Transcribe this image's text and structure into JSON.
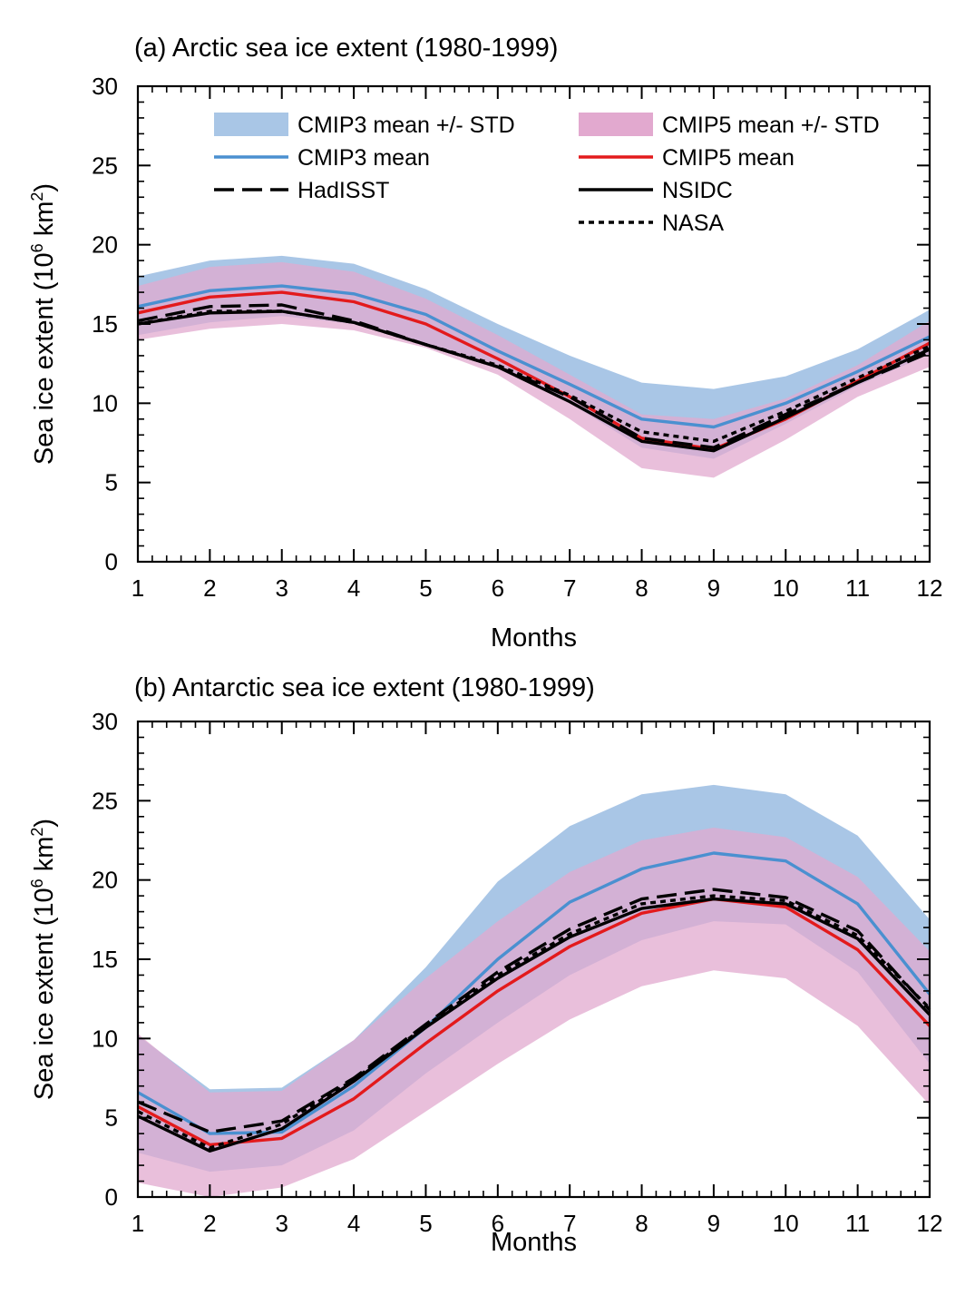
{
  "chart_data": [
    {
      "type": "line",
      "title": "(a) Arctic sea ice extent (1980-1999)",
      "xlabel": "Months",
      "ylabel_main": "Sea ice extent (10",
      "ylabel_sup1": "6",
      "ylabel_mid": " km",
      "ylabel_sup2": "2",
      "ylabel_end": ")",
      "xlim": [
        1,
        12
      ],
      "ylim": [
        0,
        30
      ],
      "x": [
        1,
        2,
        3,
        4,
        5,
        6,
        7,
        8,
        9,
        10,
        11,
        12
      ],
      "xticks": [
        "1",
        "2",
        "3",
        "4",
        "5",
        "6",
        "7",
        "8",
        "9",
        "10",
        "11",
        "12"
      ],
      "yticks": [
        "0",
        "5",
        "10",
        "15",
        "20",
        "25",
        "30"
      ],
      "bands": [
        {
          "name": "CMIP3 mean +/- STD",
          "color": "#a9c6e6",
          "upper": [
            18.0,
            19.0,
            19.3,
            18.8,
            17.2,
            15.0,
            13.0,
            11.3,
            10.9,
            11.7,
            13.4,
            15.9
          ],
          "lower": [
            14.3,
            15.1,
            15.5,
            15.0,
            13.7,
            12.2,
            10.0,
            7.2,
            6.5,
            8.7,
            11.1,
            13.1
          ]
        },
        {
          "name": "CMIP5 mean +/- STD",
          "color": "#e2a9cf",
          "upper": [
            17.4,
            18.6,
            18.9,
            18.3,
            16.6,
            14.3,
            11.8,
            9.3,
            9.0,
            10.3,
            12.4,
            15.2
          ],
          "lower": [
            14.0,
            14.7,
            15.0,
            14.6,
            13.5,
            11.8,
            9.0,
            5.9,
            5.3,
            7.7,
            10.4,
            12.3
          ]
        }
      ],
      "series": [
        {
          "name": "CMIP3 mean",
          "color": "#4a90d0",
          "style": "solid",
          "values": [
            16.1,
            17.1,
            17.4,
            16.9,
            15.6,
            13.3,
            11.2,
            9.0,
            8.5,
            10.0,
            12.0,
            14.2
          ]
        },
        {
          "name": "CMIP5 mean",
          "color": "#e31a1c",
          "style": "solid",
          "values": [
            15.7,
            16.7,
            17.0,
            16.4,
            15.0,
            12.8,
            10.4,
            7.8,
            7.1,
            9.0,
            11.4,
            13.8
          ]
        },
        {
          "name": "HadISST",
          "color": "#000000",
          "style": "longdash",
          "values": [
            15.2,
            16.1,
            16.2,
            15.2,
            13.7,
            12.3,
            10.4,
            7.8,
            7.2,
            9.3,
            11.3,
            13.2
          ]
        },
        {
          "name": "NSIDC",
          "color": "#000000",
          "style": "solid",
          "values": [
            15.0,
            15.7,
            15.8,
            15.1,
            13.7,
            12.3,
            10.1,
            7.6,
            7.0,
            9.1,
            11.3,
            13.4
          ]
        },
        {
          "name": "NASA",
          "color": "#000000",
          "style": "dotted",
          "values": [
            15.0,
            15.8,
            15.8,
            15.1,
            13.7,
            12.4,
            10.5,
            8.2,
            7.6,
            9.5,
            11.6,
            13.6
          ]
        }
      ],
      "legend": {
        "col1": [
          {
            "label": "CMIP3 mean +/- STD",
            "kind": "band",
            "color": "#a9c6e6"
          },
          {
            "label": "CMIP3 mean",
            "kind": "solid",
            "color": "#4a90d0"
          },
          {
            "label": "HadISST",
            "kind": "longdash",
            "color": "#000000"
          }
        ],
        "col2": [
          {
            "label": "CMIP5 mean +/- STD",
            "kind": "band",
            "color": "#e2a9cf"
          },
          {
            "label": "CMIP5 mean",
            "kind": "solid",
            "color": "#e31a1c"
          },
          {
            "label": "NSIDC",
            "kind": "solid",
            "color": "#000000"
          },
          {
            "label": "NASA",
            "kind": "dotted",
            "color": "#000000"
          }
        ]
      }
    },
    {
      "type": "line",
      "title": "(b) Antarctic sea ice extent (1980-1999)",
      "xlabel": "Months",
      "ylabel_main": "Sea ice extent (10",
      "ylabel_sup1": "6",
      "ylabel_mid": " km",
      "ylabel_sup2": "2",
      "ylabel_end": ")",
      "xlim": [
        1,
        12
      ],
      "ylim": [
        0,
        30
      ],
      "x": [
        1,
        2,
        3,
        4,
        5,
        6,
        7,
        8,
        9,
        10,
        11,
        12
      ],
      "xticks": [
        "1",
        "2",
        "3",
        "4",
        "5",
        "6",
        "7",
        "8",
        "9",
        "10",
        "11",
        "12"
      ],
      "yticks": [
        "0",
        "5",
        "10",
        "15",
        "20",
        "25",
        "30"
      ],
      "bands": [
        {
          "name": "CMIP3 mean +/- STD",
          "color": "#a9c6e6",
          "upper": [
            10.2,
            6.8,
            6.9,
            9.9,
            14.5,
            19.9,
            23.4,
            25.4,
            26.0,
            25.4,
            22.8,
            17.5
          ],
          "lower": [
            2.8,
            1.6,
            2.0,
            4.2,
            7.8,
            11.0,
            14.0,
            16.2,
            17.4,
            17.2,
            14.2,
            8.4
          ]
        },
        {
          "name": "CMIP5 mean +/- STD",
          "color": "#e2a9cf",
          "upper": [
            10.3,
            6.6,
            6.7,
            9.9,
            13.8,
            17.4,
            20.5,
            22.5,
            23.3,
            22.7,
            20.2,
            15.5
          ],
          "lower": [
            0.9,
            0.0,
            0.6,
            2.4,
            5.4,
            8.4,
            11.2,
            13.3,
            14.3,
            13.8,
            10.8,
            5.8
          ]
        },
        {
          "name": "CMIP3 mean +/- STD",
          "color": "#a9c6e6",
          "upper": [
            2.8,
            1.6,
            2.0,
            4.2,
            7.8,
            11.0,
            14.0,
            16.2,
            17.4,
            17.2,
            14.2,
            8.4
          ],
          "lower": [
            2.8,
            1.6,
            2.0,
            4.2,
            7.8,
            11.0,
            14.0,
            16.2,
            17.4,
            17.2,
            14.2,
            8.4
          ]
        }
      ],
      "series": [
        {
          "name": "CMIP3 mean",
          "color": "#4a90d0",
          "style": "solid",
          "values": [
            6.6,
            4.0,
            4.1,
            7.0,
            10.7,
            15.0,
            18.6,
            20.7,
            21.7,
            21.2,
            18.5,
            12.8
          ]
        },
        {
          "name": "CMIP5 mean",
          "color": "#e31a1c",
          "style": "solid",
          "values": [
            5.7,
            3.3,
            3.7,
            6.2,
            9.7,
            13.0,
            15.8,
            17.9,
            18.8,
            18.3,
            15.6,
            10.8
          ]
        },
        {
          "name": "HadISST",
          "color": "#000000",
          "style": "longdash",
          "values": [
            6.0,
            4.1,
            4.8,
            7.5,
            10.9,
            14.2,
            16.9,
            18.8,
            19.4,
            18.9,
            16.8,
            11.8
          ]
        },
        {
          "name": "NSIDC",
          "color": "#000000",
          "style": "solid",
          "values": [
            5.1,
            2.9,
            4.3,
            7.3,
            10.7,
            13.8,
            16.4,
            18.2,
            18.8,
            18.5,
            16.3,
            11.5
          ]
        },
        {
          "name": "NASA",
          "color": "#000000",
          "style": "dotted",
          "values": [
            5.4,
            3.1,
            4.6,
            7.4,
            10.8,
            14.0,
            16.6,
            18.5,
            19.0,
            18.7,
            16.5,
            11.9
          ]
        }
      ],
      "legend": null
    }
  ]
}
